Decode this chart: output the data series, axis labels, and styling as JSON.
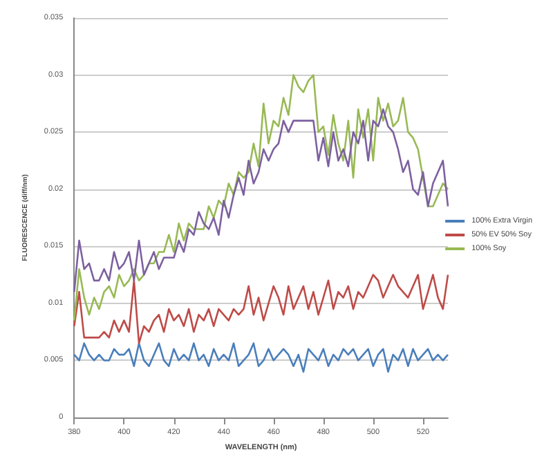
{
  "chart_data": {
    "type": "line",
    "xlabel": "WAVELENGTH (nm)",
    "ylabel": "FLUORESCENCE (diff/nm)",
    "x": [
      380,
      382,
      384,
      386,
      388,
      390,
      392,
      394,
      396,
      398,
      400,
      402,
      404,
      406,
      408,
      410,
      412,
      414,
      416,
      418,
      420,
      422,
      424,
      426,
      428,
      430,
      432,
      434,
      436,
      438,
      440,
      442,
      444,
      446,
      448,
      450,
      452,
      454,
      456,
      458,
      460,
      462,
      464,
      466,
      468,
      470,
      472,
      474,
      476,
      478,
      480,
      482,
      484,
      486,
      488,
      490,
      492,
      494,
      496,
      498,
      500,
      502,
      504,
      506,
      508,
      510,
      512,
      514,
      516,
      518,
      520,
      522,
      524,
      526,
      528,
      530
    ],
    "series": [
      {
        "name": "100% Extra Virgin",
        "color": "#4a7ebb",
        "values": [
          0.0055,
          0.005,
          0.0065,
          0.0055,
          0.005,
          0.0055,
          0.005,
          0.005,
          0.006,
          0.0055,
          0.0055,
          0.006,
          0.0045,
          0.0065,
          0.005,
          0.0045,
          0.0055,
          0.0065,
          0.005,
          0.0045,
          0.006,
          0.005,
          0.0055,
          0.005,
          0.0065,
          0.005,
          0.0055,
          0.0045,
          0.006,
          0.005,
          0.0055,
          0.005,
          0.0065,
          0.0045,
          0.005,
          0.0055,
          0.0065,
          0.0045,
          0.005,
          0.006,
          0.005,
          0.0055,
          0.006,
          0.0055,
          0.0045,
          0.0055,
          0.004,
          0.006,
          0.0055,
          0.005,
          0.006,
          0.0045,
          0.0055,
          0.005,
          0.006,
          0.0055,
          0.006,
          0.005,
          0.0055,
          0.006,
          0.0045,
          0.0055,
          0.006,
          0.004,
          0.0055,
          0.005,
          0.006,
          0.0045,
          0.006,
          0.005,
          0.0055,
          0.006,
          0.005,
          0.0055,
          0.005,
          0.0055
        ]
      },
      {
        "name": "50% EV 50% Soy",
        "color": "#be4b48",
        "values": [
          0.008,
          0.011,
          0.007,
          0.007,
          0.007,
          0.007,
          0.0075,
          0.007,
          0.0085,
          0.0075,
          0.0085,
          0.0075,
          0.012,
          0.0065,
          0.008,
          0.0075,
          0.0085,
          0.009,
          0.0075,
          0.0095,
          0.0085,
          0.009,
          0.008,
          0.0095,
          0.0075,
          0.009,
          0.0085,
          0.0095,
          0.008,
          0.0095,
          0.009,
          0.0085,
          0.0095,
          0.009,
          0.0095,
          0.0115,
          0.009,
          0.0105,
          0.0085,
          0.01,
          0.0115,
          0.0105,
          0.009,
          0.0115,
          0.0095,
          0.0105,
          0.0115,
          0.0095,
          0.011,
          0.009,
          0.0105,
          0.012,
          0.0095,
          0.011,
          0.0105,
          0.0115,
          0.0095,
          0.011,
          0.0105,
          0.0115,
          0.0125,
          0.012,
          0.0105,
          0.0115,
          0.0125,
          0.0115,
          0.011,
          0.0105,
          0.0115,
          0.0125,
          0.0095,
          0.011,
          0.0125,
          0.0105,
          0.0095,
          0.0125
        ]
      },
      {
        "name": "100% Soy",
        "color": "#98b954",
        "values": [
          0.0085,
          0.013,
          0.0105,
          0.009,
          0.0105,
          0.0095,
          0.011,
          0.0115,
          0.0105,
          0.0125,
          0.0115,
          0.012,
          0.013,
          0.012,
          0.0125,
          0.0135,
          0.0135,
          0.0145,
          0.0145,
          0.016,
          0.0145,
          0.017,
          0.0155,
          0.017,
          0.0165,
          0.0165,
          0.0165,
          0.0185,
          0.0175,
          0.019,
          0.0185,
          0.0205,
          0.0195,
          0.0215,
          0.021,
          0.0215,
          0.024,
          0.022,
          0.0275,
          0.024,
          0.026,
          0.0255,
          0.028,
          0.0265,
          0.03,
          0.029,
          0.0285,
          0.0295,
          0.03,
          0.025,
          0.0255,
          0.023,
          0.0265,
          0.024,
          0.0225,
          0.026,
          0.021,
          0.027,
          0.0245,
          0.027,
          0.0225,
          0.028,
          0.026,
          0.0275,
          0.0255,
          0.026,
          0.028,
          0.025,
          0.0245,
          0.0235,
          0.021,
          0.0185,
          0.0185,
          0.0195,
          0.0205,
          0.02
        ]
      },
      {
        "color": "#7d60a0",
        "values": [
          0.011,
          0.0155,
          0.013,
          0.0135,
          0.012,
          0.012,
          0.013,
          0.012,
          0.0145,
          0.013,
          0.0135,
          0.0145,
          0.012,
          0.0155,
          0.0125,
          0.0135,
          0.0145,
          0.013,
          0.014,
          0.014,
          0.014,
          0.0155,
          0.0145,
          0.0165,
          0.016,
          0.018,
          0.017,
          0.0165,
          0.0175,
          0.016,
          0.019,
          0.0175,
          0.0195,
          0.021,
          0.0195,
          0.0225,
          0.0205,
          0.0215,
          0.0235,
          0.0225,
          0.0235,
          0.024,
          0.026,
          0.025,
          0.026,
          0.026,
          0.026,
          0.026,
          0.026,
          0.0225,
          0.0245,
          0.022,
          0.025,
          0.0225,
          0.0235,
          0.022,
          0.025,
          0.024,
          0.026,
          0.0225,
          0.026,
          0.0255,
          0.027,
          0.0255,
          0.025,
          0.0235,
          0.0215,
          0.0225,
          0.02,
          0.0195,
          0.0215,
          0.0185,
          0.0205,
          0.0215,
          0.0225,
          0.0185
        ]
      }
    ],
    "xlim": [
      380,
      530
    ],
    "xticks": [
      380,
      400,
      420,
      440,
      460,
      480,
      500,
      520
    ],
    "ylim": [
      0,
      0.035
    ],
    "yticks": [
      0,
      0.005,
      0.01,
      0.015,
      0.02,
      0.025,
      0.03,
      0.035
    ],
    "grid": "y",
    "legend": "right",
    "marker": "none",
    "line_style": "solid"
  }
}
